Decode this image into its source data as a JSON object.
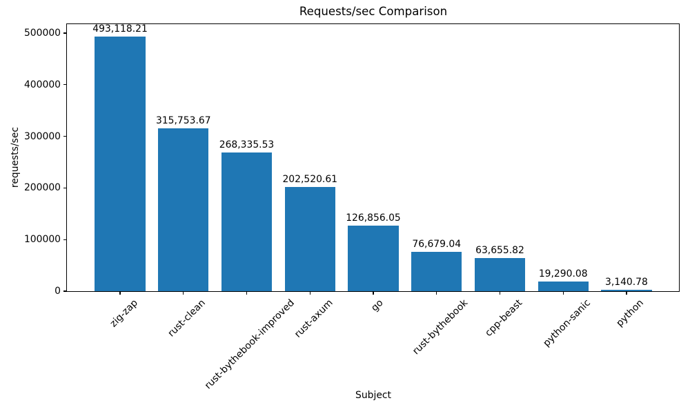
{
  "chart_data": {
    "type": "bar",
    "title": "Requests/sec Comparison",
    "xlabel": "Subject",
    "ylabel": "requests/sec",
    "categories": [
      "zig-zap",
      "rust-clean",
      "rust-bythebook-improved",
      "rust-axum",
      "go",
      "rust-bythebook",
      "cpp-beast",
      "python-sanic",
      "python"
    ],
    "values": [
      493118.21,
      315753.67,
      268335.53,
      202520.61,
      126856.05,
      76679.04,
      63655.82,
      19290.08,
      3140.78
    ],
    "value_labels": [
      "493,118.21",
      "315,753.67",
      "268,335.53",
      "202,520.61",
      "126,856.05",
      "76,679.04",
      "63,655.82",
      "19,290.08",
      "3,140.78"
    ],
    "yticks": [
      0,
      100000,
      200000,
      300000,
      400000,
      500000
    ],
    "ytick_labels": [
      "0",
      "100000",
      "200000",
      "300000",
      "400000",
      "500000"
    ],
    "ylim": [
      0,
      517380
    ],
    "bar_color": "#1f77b4",
    "axis_color": "#000000",
    "grid": false,
    "legend": null,
    "x_tick_rotation_deg": 45
  }
}
